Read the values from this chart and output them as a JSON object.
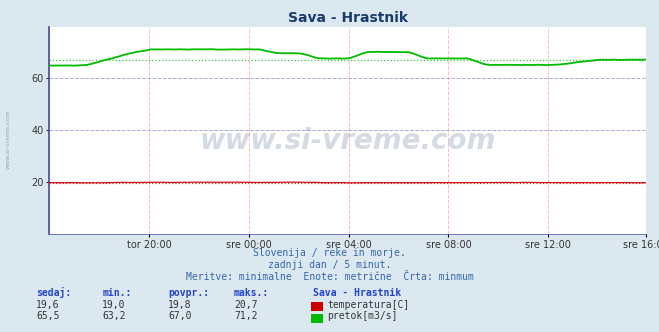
{
  "title": "Sava - Hrastnik",
  "bg_color": "#dce8f0",
  "plot_bg_color": "#ffffff",
  "grid_color_h": "#aaaadd",
  "grid_color_v": "#ffbbbb",
  "ylim": [
    0,
    80
  ],
  "yticks": [
    20,
    40,
    60
  ],
  "n_points": 288,
  "temp_color": "#cc0000",
  "flow_color": "#00bb00",
  "watermark": "www.si-vreme.com",
  "watermark_color": "#1a3a6a",
  "watermark_alpha": 0.18,
  "subtitle1": "Slovenija / reke in morje.",
  "subtitle2": "zadnji dan / 5 minut.",
  "subtitle3": "Meritve: minimalne  Enote: metrične  Črta: minmum",
  "footer_color": "#3366aa",
  "table_header": [
    "sedaj:",
    "min.:",
    "povpr.:",
    "maks.:"
  ],
  "temp_row": [
    "19,6",
    "19,0",
    "19,8",
    "20,7"
  ],
  "flow_row": [
    "65,5",
    "63,2",
    "67,0",
    "71,2"
  ],
  "series_label": "Sava - Hrastnik",
  "temp_label": "temperatura[C]",
  "flow_label": "pretok[m3/s]",
  "avg_flow": 67.0,
  "avg_temp": 19.8,
  "xlabel_ticks": [
    "tor 20:00",
    "sre 00:00",
    "sre 04:00",
    "sre 08:00",
    "sre 12:00",
    "sre 16:00"
  ],
  "tick_x_positions": [
    48,
    96,
    144,
    192,
    240,
    287
  ]
}
